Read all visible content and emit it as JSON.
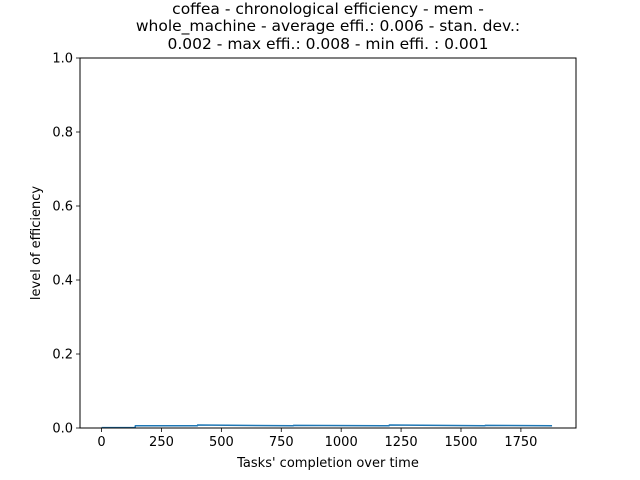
{
  "chart_data": {
    "type": "line",
    "title_lines": [
      "coffea - chronological efficiency - mem -",
      "whole_machine - average effi.: 0.006 - stan. dev.:",
      "0.002 - max effi.: 0.008 - min effi. : 0.001"
    ],
    "xlabel": "Tasks' completion over time",
    "ylabel": "level of efficiency",
    "xlim": [
      -90,
      1980
    ],
    "ylim": [
      0,
      1
    ],
    "x_ticks": [
      0,
      250,
      500,
      750,
      1000,
      1250,
      1500,
      1750
    ],
    "y_ticks": [
      0.0,
      0.2,
      0.4,
      0.6,
      0.8,
      1.0
    ],
    "x_tick_labels": [
      "0",
      "250",
      "500",
      "750",
      "1000",
      "1250",
      "1500",
      "1750"
    ],
    "y_tick_labels": [
      "0.0",
      "0.2",
      "0.4",
      "0.6",
      "0.8",
      "1.0"
    ],
    "grid": false,
    "series": [
      {
        "color": "#1f77b4",
        "x": [
          0,
          140,
          141,
          400,
          401,
          800,
          801,
          1200,
          1201,
          1600,
          1601,
          1880
        ],
        "y": [
          0.001,
          0.001,
          0.006,
          0.006,
          0.008,
          0.006,
          0.007,
          0.006,
          0.008,
          0.006,
          0.007,
          0.006
        ]
      }
    ]
  }
}
